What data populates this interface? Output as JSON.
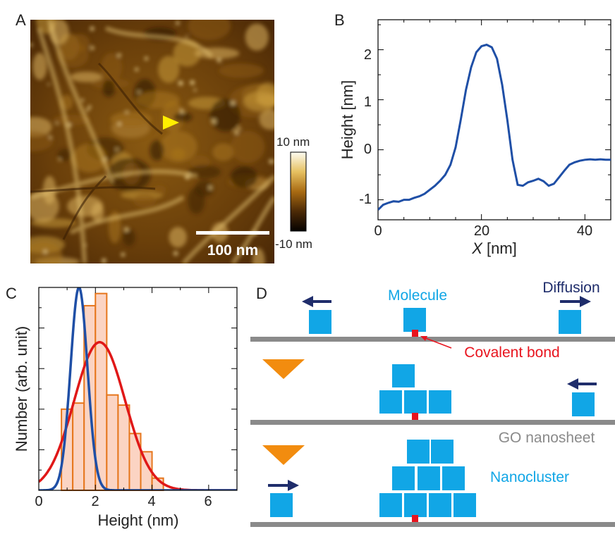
{
  "panels": {
    "a": {
      "letter": "A",
      "scalebar_label": "100 nm",
      "colorbar": {
        "max_label": "10 nm",
        "min_label": "-10 nm"
      }
    },
    "b": {
      "letter": "B",
      "xlabel_var": "X",
      "xlabel_unit": " [nm]",
      "ylabel": "Height [nm]",
      "xticks": [
        "0",
        "20",
        "40"
      ],
      "yticks": [
        "2",
        "1",
        "0",
        "-1"
      ]
    },
    "c": {
      "letter": "C",
      "xlabel": "Height (nm)",
      "ylabel": "Number (arb. unit)",
      "xticks": [
        "0",
        "2",
        "4",
        "6"
      ]
    },
    "d": {
      "letter": "D",
      "labels": {
        "molecule": "Molecule",
        "diffusion": "Diffusion",
        "covalent_bond": "Covalent bond",
        "go_nanosheet": "GO nanosheet",
        "nanocluster": "Nanocluster"
      }
    }
  },
  "colors": {
    "molecule": "#11a6e6",
    "arrow_dark": "#1f2d6b",
    "bond": "#e8141e",
    "sheet": "#8a8a8a",
    "big_arrow": "#f28c0f",
    "hist_fill": "#fbd4c3",
    "hist_edge": "#e6761c",
    "fit_red": "#e01818",
    "fit_blue": "#1f4fa6"
  },
  "chart_data": [
    {
      "type": "line",
      "panel": "B",
      "xlabel": "X [nm]",
      "ylabel": "Height [nm]",
      "xlim": [
        0,
        45
      ],
      "ylim": [
        -1.4,
        2.6
      ],
      "series": [
        {
          "x": [
            0,
            1,
            2,
            3,
            4,
            5,
            6,
            7,
            8,
            9,
            10,
            11,
            12,
            13,
            14,
            15,
            16,
            17,
            18,
            19,
            20,
            21,
            22,
            23,
            24,
            25,
            26,
            27,
            28,
            29,
            30,
            31,
            32,
            33,
            34,
            35,
            36,
            37,
            38,
            39,
            40,
            41,
            42,
            43,
            44,
            45
          ],
          "y": [
            -1.2,
            -1.1,
            -1.06,
            -1.03,
            -1.04,
            -1.0,
            -1.0,
            -0.96,
            -0.93,
            -0.88,
            -0.8,
            -0.72,
            -0.62,
            -0.5,
            -0.3,
            0.05,
            0.6,
            1.2,
            1.65,
            1.95,
            2.07,
            2.1,
            2.05,
            1.82,
            1.3,
            0.6,
            -0.2,
            -0.7,
            -0.72,
            -0.65,
            -0.62,
            -0.58,
            -0.63,
            -0.72,
            -0.68,
            -0.55,
            -0.42,
            -0.3,
            -0.25,
            -0.22,
            -0.2,
            -0.19,
            -0.2,
            -0.19,
            -0.2,
            -0.2
          ]
        }
      ]
    },
    {
      "type": "bar",
      "panel": "C",
      "xlabel": "Height (nm)",
      "ylabel": "Number (arb. unit)",
      "xlim": [
        0,
        7
      ],
      "ylim": [
        0,
        1.0
      ],
      "bins": [
        [
          0.8,
          1.2
        ],
        [
          1.2,
          1.6
        ],
        [
          1.6,
          2.0
        ],
        [
          2.0,
          2.4
        ],
        [
          2.4,
          2.8
        ],
        [
          2.8,
          3.2
        ],
        [
          3.2,
          3.6
        ],
        [
          3.6,
          4.0
        ],
        [
          4.0,
          4.4
        ]
      ],
      "values": [
        0.4,
        0.43,
        0.91,
        0.97,
        0.47,
        0.42,
        0.28,
        0.19,
        0.06
      ],
      "series": [
        {
          "type": "gaussian",
          "color": "#e01818",
          "mu": 2.15,
          "sigma": 0.9,
          "amplitude": 0.73
        },
        {
          "type": "gaussian",
          "color": "#1f4fa6",
          "mu": 1.42,
          "sigma": 0.3,
          "amplitude": 1.0
        }
      ]
    }
  ]
}
